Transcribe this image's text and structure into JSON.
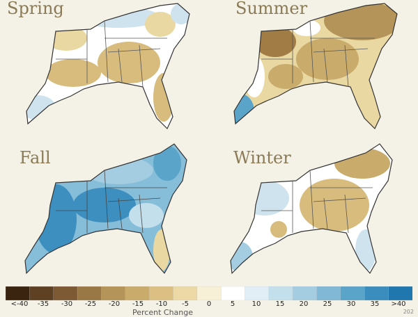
{
  "panels": [
    {
      "label": "Spring",
      "theme": "mixed"
    },
    {
      "label": "Summer",
      "theme": "dry"
    },
    {
      "label": "Fall",
      "theme": "wet"
    },
    {
      "label": "Winter",
      "theme": "mixed-dry"
    }
  ],
  "legend": {
    "labels": [
      "<-40",
      "-35",
      "-30",
      "-25",
      "-20",
      "-15",
      "-10",
      "-5",
      "0",
      "5",
      "10",
      "15",
      "20",
      "25",
      "30",
      "35",
      ">40"
    ],
    "colors": [
      "#3a2410",
      "#5e4022",
      "#7d5a34",
      "#9a7845",
      "#b49458",
      "#c9ab6c",
      "#dcc083",
      "#ecd9a6",
      "#f7efd6",
      "#ffffff",
      "#e2eef5",
      "#c4dfec",
      "#a4cde2",
      "#80b8d6",
      "#5aa3c9",
      "#3a8dbd",
      "#1f77ad"
    ],
    "title": "Percent Change",
    "corner_number": "202"
  },
  "colors": {
    "dry_strong": "#a27c45",
    "dry": "#d7bc7e",
    "dry_light": "#ead8a2",
    "wet_light": "#cfe3ef",
    "wet": "#86bdd9",
    "wet_strong": "#3d8fc0",
    "neutral": "#ffffff",
    "border": "#333333"
  }
}
